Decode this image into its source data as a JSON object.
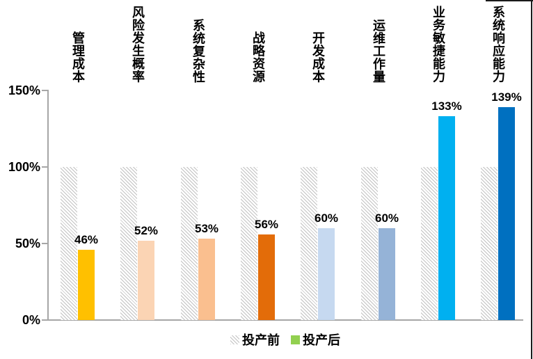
{
  "chart_data": {
    "type": "bar",
    "title": "",
    "categories": [
      "管理成本",
      "风险发生概率",
      "系统复杂性",
      "战略资源",
      "开发成本",
      "运维工作量",
      "业务敏捷能力",
      "系统响应能力"
    ],
    "series": [
      {
        "name": "投产前",
        "values": [
          100,
          100,
          100,
          100,
          100,
          100,
          100,
          100
        ],
        "style": "hatched",
        "hatch_color": "#C2C2C2"
      },
      {
        "name": "投产后",
        "values": [
          46,
          52,
          53,
          56,
          60,
          60,
          133,
          139
        ],
        "style": "solid",
        "point_colors": [
          "#FFC000",
          "#FBD4B4",
          "#FABF8F",
          "#E36C09",
          "#C6D9F0",
          "#95B3D7",
          "#00B0F0",
          "#0070C0"
        ],
        "legend_color": "#92D050"
      }
    ],
    "value_labels": [
      "46%",
      "52%",
      "53%",
      "56%",
      "60%",
      "60%",
      "133%",
      "139%"
    ],
    "y_ticks": [
      "0%",
      "50%",
      "100%",
      "150%"
    ],
    "ylim": [
      0,
      150
    ],
    "grid": false,
    "legend_position": "bottom",
    "axis_color": "#A6A6A6"
  },
  "legend": {
    "pre_label": "投产前",
    "post_label": "投产后",
    "post_swatch_color": "#92D050"
  }
}
